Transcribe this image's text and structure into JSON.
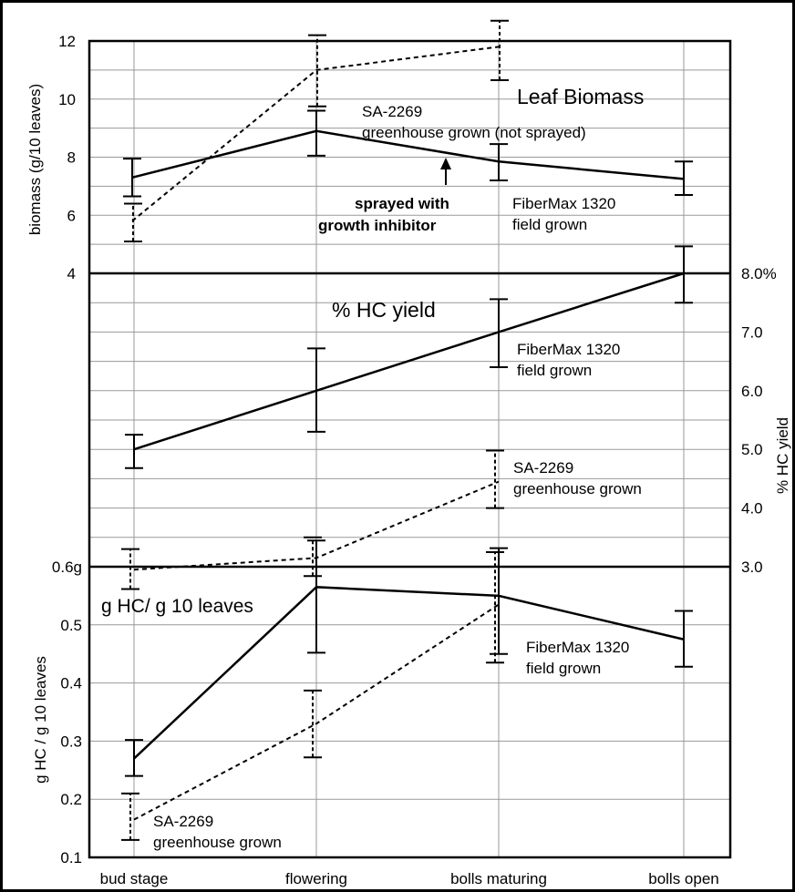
{
  "stages": [
    "bud stage",
    "flowering",
    "bolls maturing",
    "bolls open"
  ],
  "chart_data": [
    {
      "type": "line",
      "title": "Leaf Biomass",
      "ylabel": "biomass (g/10 leaves)",
      "yticks": [
        "4",
        "6",
        "8",
        "10",
        "12"
      ],
      "ylim": [
        4,
        12
      ],
      "series": [
        {
          "key": "fm",
          "style": "solid",
          "labels": [
            "FiberMax 1320",
            "field grown"
          ],
          "values": [
            7.3,
            8.9,
            7.85,
            7.25
          ],
          "err_low": [
            6.65,
            8.05,
            7.2,
            6.7
          ],
          "err_high": [
            7.95,
            9.6,
            8.45,
            7.85
          ]
        },
        {
          "key": "sa",
          "style": "dashed",
          "labels": [
            "SA-2269",
            "greenhouse grown (not sprayed)"
          ],
          "values": [
            5.8,
            11.0,
            11.8,
            null
          ],
          "err_low": [
            5.1,
            9.75,
            10.65,
            null
          ],
          "err_high": [
            6.4,
            12.2,
            12.7,
            null
          ]
        }
      ],
      "annotation": [
        "sprayed with",
        "growth inhibitor"
      ]
    },
    {
      "type": "line",
      "title": "% HC yield",
      "ylabel": "% HC yield",
      "yticks": [
        "3.0",
        "4.0",
        "5.0",
        "6.0",
        "7.0",
        "8.0%"
      ],
      "ylim": [
        3.0,
        8.0
      ],
      "series": [
        {
          "key": "fm",
          "style": "solid",
          "labels": [
            "FiberMax 1320",
            "field grown"
          ],
          "values": [
            5.0,
            6.0,
            7.0,
            8.0
          ],
          "err_low": [
            4.68,
            5.3,
            6.4,
            7.5
          ],
          "err_high": [
            5.25,
            6.72,
            7.56,
            8.46
          ]
        },
        {
          "key": "sa",
          "style": "dashed",
          "labels": [
            "SA-2269",
            "greenhouse grown"
          ],
          "values": [
            2.95,
            3.15,
            4.45,
            null
          ],
          "err_low": [
            2.62,
            2.84,
            4.0,
            null
          ],
          "err_high": [
            3.3,
            3.5,
            4.98,
            null
          ]
        }
      ]
    },
    {
      "type": "line",
      "title": "g HC/ g 10 leaves",
      "ylabel": "g HC / g 10 leaves",
      "yticks": [
        "0.1",
        "0.2",
        "0.3",
        "0.4",
        "0.5",
        "0.6g"
      ],
      "ylim": [
        0.1,
        0.6
      ],
      "series": [
        {
          "key": "fm",
          "style": "solid",
          "labels": [
            "FiberMax 1320",
            "field grown"
          ],
          "values": [
            0.27,
            0.565,
            0.55,
            0.475
          ],
          "err_low": [
            0.24,
            0.452,
            0.45,
            0.428
          ],
          "err_high": [
            0.302,
            0.645,
            0.632,
            0.524
          ]
        },
        {
          "key": "sa",
          "style": "dashed",
          "labels": [
            "SA-2269",
            "greenhouse grown"
          ],
          "values": [
            0.165,
            0.33,
            0.535,
            null
          ],
          "err_low": [
            0.13,
            0.272,
            0.435,
            null
          ],
          "err_high": [
            0.21,
            0.387,
            0.625,
            null
          ]
        }
      ]
    }
  ]
}
